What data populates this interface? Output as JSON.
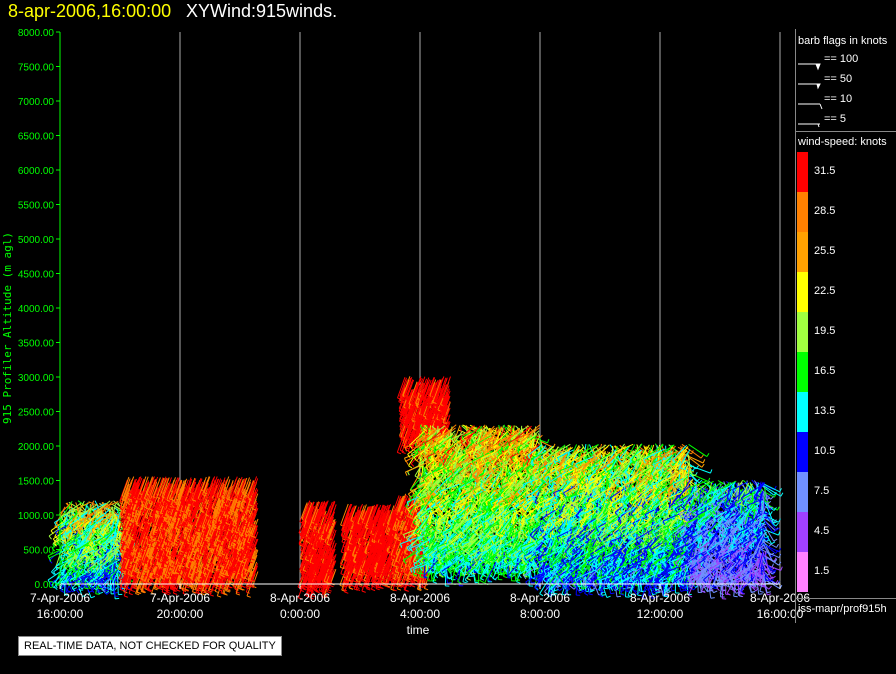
{
  "header": {
    "date": "8-apr-2006,16:00:00",
    "product": "XYWind:915winds."
  },
  "legend": {
    "barb_title": "barb flags in knots",
    "barbs": [
      {
        "label": "== 100"
      },
      {
        "label": "== 50"
      },
      {
        "label": "== 10"
      },
      {
        "label": "== 5"
      }
    ],
    "speed_title": "wind-speed: knots",
    "colorbar": [
      {
        "label": "31.5",
        "color": "#ff0000"
      },
      {
        "label": "28.5",
        "color": "#ff8000"
      },
      {
        "label": "25.5",
        "color": "#ffa000"
      },
      {
        "label": "22.5",
        "color": "#ffff00"
      },
      {
        "label": "19.5",
        "color": "#a0ff40"
      },
      {
        "label": "16.5",
        "color": "#00ff00"
      },
      {
        "label": "13.5",
        "color": "#00ffff"
      },
      {
        "label": "10.5",
        "color": "#0000ff"
      },
      {
        "label": "7.5",
        "color": "#7090ff"
      },
      {
        "label": "4.5",
        "color": "#a040ff"
      },
      {
        "label": "1.5",
        "color": "#ff80ff"
      }
    ],
    "source": "iss-mapr/prof915h"
  },
  "notice": "REAL-TIME DATA, NOT CHECKED FOR QUALITY",
  "chart_data": {
    "type": "scatter",
    "title": "8-apr-2006,16:00:00  XYWind:915winds.",
    "xlabel": "time",
    "ylabel": "915 Profiler Altitude (m agl)",
    "ylim": [
      0,
      8000
    ],
    "xlim": [
      0,
      24
    ],
    "grid": "vertical lines at major time ticks",
    "y_ticks": [
      "0.00",
      "500.00",
      "1000.00",
      "1500.00",
      "2000.00",
      "2500.00",
      "3000.00",
      "3500.00",
      "4000.00",
      "4500.00",
      "5000.00",
      "5500.00",
      "6000.00",
      "6500.00",
      "7000.00",
      "7500.00",
      "8000.00"
    ],
    "x_ticks": [
      {
        "h": 0,
        "line1": "7-Apr-2006",
        "line2": "16:00:00"
      },
      {
        "h": 4,
        "line1": "7-Apr-2006",
        "line2": "20:00:00"
      },
      {
        "h": 8,
        "line1": "8-Apr-2006",
        "line2": "0:00:00"
      },
      {
        "h": 12,
        "line1": "8-Apr-2006",
        "line2": "4:00:00"
      },
      {
        "h": 16,
        "line1": "8-Apr-2006",
        "line2": "8:00:00"
      },
      {
        "h": 20,
        "line1": "8-Apr-2006",
        "line2": "12:00:00"
      },
      {
        "h": 24,
        "line1": "8-Apr-2006",
        "line2": "16:00:00"
      }
    ],
    "series_note": "wind barbs colored by speed (knots); altitude vs time",
    "data_regions": [
      {
        "t0": 0.1,
        "t1": 2.0,
        "z0": 100,
        "z1": 1200,
        "speed": [
          6,
          30
        ]
      },
      {
        "t0": 2.2,
        "t1": 6.6,
        "z0": 150,
        "z1": 1500,
        "speed": [
          26,
          33
        ]
      },
      {
        "t0": 8.2,
        "t1": 9.2,
        "z0": 100,
        "z1": 1200,
        "speed": [
          28,
          33
        ]
      },
      {
        "t0": 9.6,
        "t1": 11.3,
        "z0": 200,
        "z1": 1100,
        "speed": [
          28,
          33
        ]
      },
      {
        "t0": 11.3,
        "t1": 12.4,
        "z0": 200,
        "z1": 1300,
        "speed": [
          27,
          33
        ]
      },
      {
        "t0": 11.5,
        "t1": 13.0,
        "z0": 2200,
        "z1": 3000,
        "speed": [
          28,
          33
        ]
      },
      {
        "t0": 12.0,
        "t1": 16.0,
        "z0": 300,
        "z1": 2300,
        "speed": [
          8,
          33
        ]
      },
      {
        "t0": 16.0,
        "t1": 21.0,
        "z0": 100,
        "z1": 2000,
        "speed": [
          5,
          30
        ]
      },
      {
        "t0": 21.0,
        "t1": 23.5,
        "z0": 100,
        "z1": 1500,
        "speed": [
          2,
          20
        ]
      }
    ]
  }
}
